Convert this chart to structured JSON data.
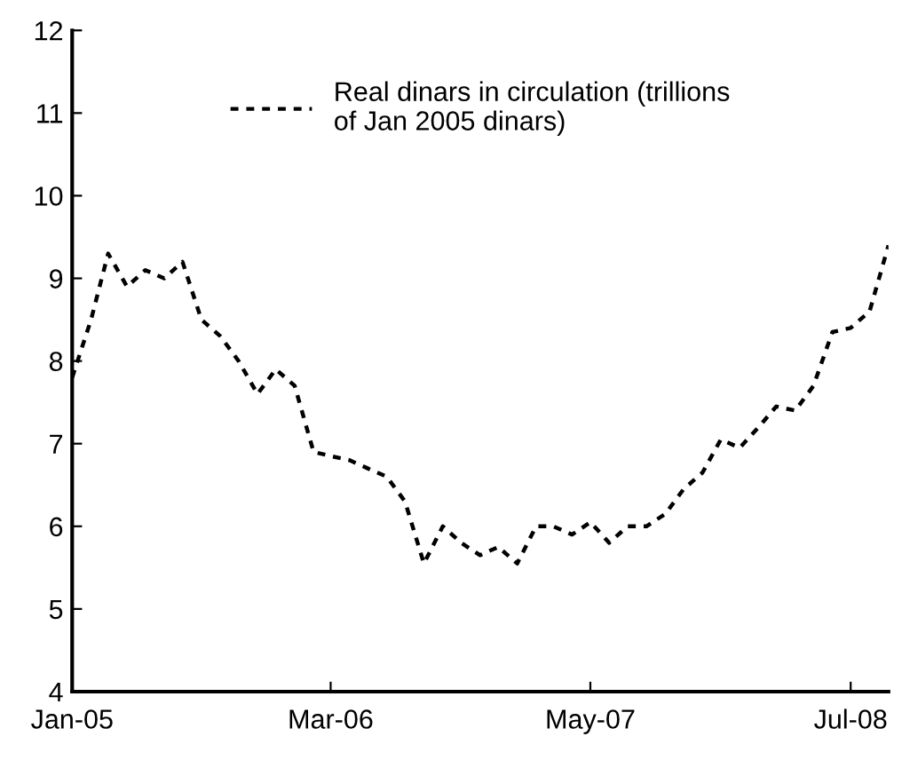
{
  "chart_data": {
    "type": "line",
    "x": [
      "2005-01",
      "2005-02",
      "2005-03",
      "2005-04",
      "2005-05",
      "2005-06",
      "2005-07",
      "2005-08",
      "2005-09",
      "2005-10",
      "2005-11",
      "2005-12",
      "2006-01",
      "2006-02",
      "2006-03",
      "2006-04",
      "2006-05",
      "2006-06",
      "2006-07",
      "2006-08",
      "2006-09",
      "2006-10",
      "2006-11",
      "2006-12",
      "2007-01",
      "2007-02",
      "2007-03",
      "2007-04",
      "2007-05",
      "2007-06",
      "2007-07",
      "2007-08",
      "2007-09",
      "2007-10",
      "2007-11",
      "2007-12",
      "2008-01",
      "2008-02",
      "2008-03",
      "2008-04",
      "2008-05",
      "2008-06",
      "2008-07",
      "2008-08",
      "2008-09"
    ],
    "series": [
      {
        "name": "Real dinars in circulation (trillions\nof Jan 2005 dinars)",
        "color": "#000000",
        "values": [
          7.8,
          8.5,
          9.3,
          8.9,
          9.1,
          9.0,
          9.2,
          8.5,
          8.3,
          8.0,
          7.6,
          7.9,
          7.7,
          6.9,
          6.85,
          6.8,
          6.7,
          6.6,
          6.3,
          5.55,
          6.0,
          5.8,
          5.65,
          5.75,
          5.55,
          6.0,
          6.0,
          5.9,
          6.05,
          5.8,
          6.0,
          6.0,
          6.15,
          6.45,
          6.65,
          7.05,
          6.95,
          7.2,
          7.45,
          7.4,
          7.7,
          8.35,
          8.4,
          8.6,
          9.4
        ]
      }
    ],
    "xlim": [
      "2005-01",
      "2008-09"
    ],
    "xticks": [
      {
        "value": "2005-01",
        "label": "Jan-05"
      },
      {
        "value": "2006-03",
        "label": "Mar-06"
      },
      {
        "value": "2007-05",
        "label": "May-07"
      },
      {
        "value": "2008-07",
        "label": "Jul-08"
      }
    ],
    "ylim": [
      4,
      12
    ],
    "yticks": [
      4,
      5,
      6,
      7,
      8,
      9,
      10,
      11,
      12
    ],
    "grid": false,
    "legend": "top",
    "marker": "none",
    "line_style": "dotted"
  }
}
